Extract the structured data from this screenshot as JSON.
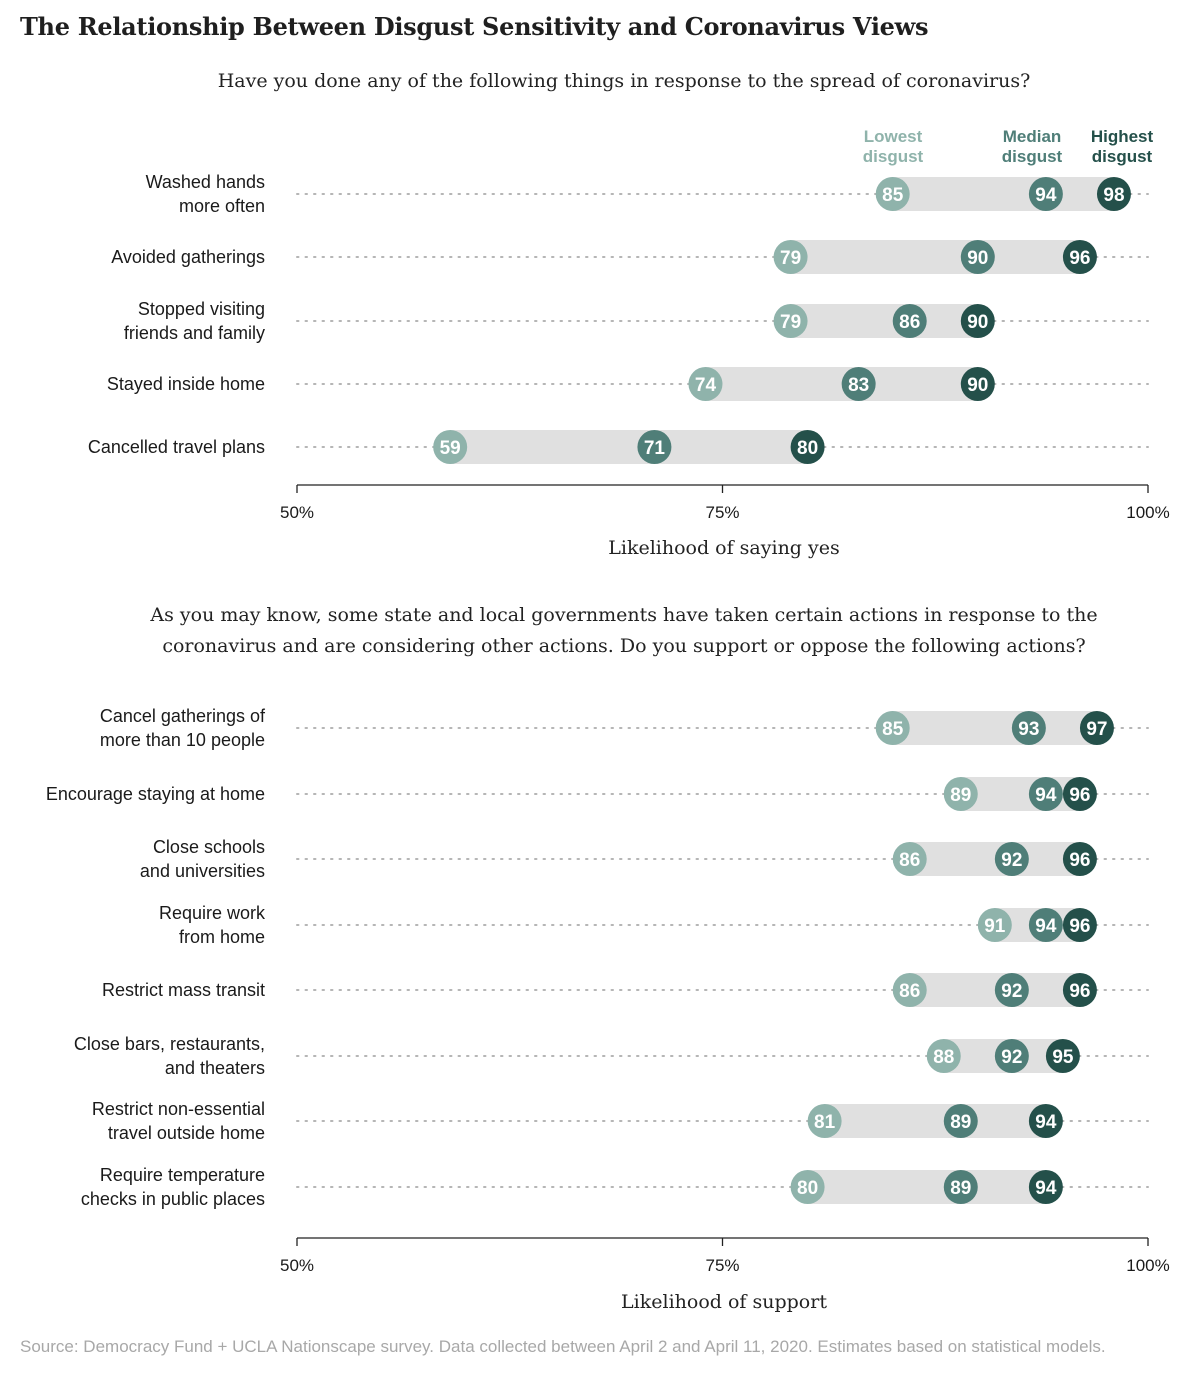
{
  "title": "The Relationship Between Disgust Sensitivity and Coronavirus Views",
  "source": "Source: Democracy Fund + UCLA Nationscape survey. Data collected between April 2 and April 11, 2020. Estimates based on statistical models.",
  "colors": {
    "lowest": "#8fb3ab",
    "median": "#4f7e78",
    "highest": "#24504a",
    "range_bar": "#e0e0e0",
    "dots": "#b5b5b5"
  },
  "chart_data": [
    {
      "type": "dot-range",
      "question_lines": [
        "Have you done any of the following things in response to the spread of coronavirus?"
      ],
      "xlabel": "Likelihood of saying yes",
      "xlim": [
        50,
        100
      ],
      "ticks": [
        "50%",
        "75%",
        "100%"
      ],
      "legend": [
        {
          "key": "lowest",
          "lines": [
            "Lowest",
            "disgust"
          ]
        },
        {
          "key": "median",
          "lines": [
            "Median",
            "disgust"
          ]
        },
        {
          "key": "highest",
          "lines": [
            "Highest",
            "disgust"
          ]
        }
      ],
      "categories": [
        {
          "lines": [
            "Washed hands",
            "more often"
          ],
          "lowest": 85,
          "median": 94,
          "highest": 98
        },
        {
          "lines": [
            "Avoided gatherings"
          ],
          "lowest": 79,
          "median": 90,
          "highest": 96
        },
        {
          "lines": [
            "Stopped visiting",
            "friends and family"
          ],
          "lowest": 79,
          "median": 86,
          "highest": 90
        },
        {
          "lines": [
            "Stayed inside home"
          ],
          "lowest": 74,
          "median": 83,
          "highest": 90
        },
        {
          "lines": [
            "Cancelled travel plans"
          ],
          "lowest": 59,
          "median": 71,
          "highest": 80
        }
      ]
    },
    {
      "type": "dot-range",
      "question_lines": [
        "As you may know, some state and local governments have taken certain actions in response to the",
        "coronavirus and are considering other actions. Do you support or oppose the following actions?"
      ],
      "xlabel": "Likelihood of support",
      "xlim": [
        50,
        100
      ],
      "ticks": [
        "50%",
        "75%",
        "100%"
      ],
      "categories": [
        {
          "lines": [
            "Cancel gatherings of",
            "more than 10 people"
          ],
          "lowest": 85,
          "median": 93,
          "highest": 97
        },
        {
          "lines": [
            "Encourage staying at home"
          ],
          "lowest": 89,
          "median": 94,
          "highest": 96
        },
        {
          "lines": [
            "Close schools",
            "and universities"
          ],
          "lowest": 86,
          "median": 92,
          "highest": 96
        },
        {
          "lines": [
            "Require work",
            "from home"
          ],
          "lowest": 91,
          "median": 94,
          "highest": 96
        },
        {
          "lines": [
            "Restrict mass transit"
          ],
          "lowest": 86,
          "median": 92,
          "highest": 96
        },
        {
          "lines": [
            "Close bars, restaurants,",
            "and theaters"
          ],
          "lowest": 88,
          "median": 92,
          "highest": 95
        },
        {
          "lines": [
            "Restrict non-essential",
            "travel outside home"
          ],
          "lowest": 81,
          "median": 89,
          "highest": 94
        },
        {
          "lines": [
            "Require temperature",
            "checks in public places"
          ],
          "lowest": 80,
          "median": 89,
          "highest": 94
        }
      ]
    }
  ]
}
